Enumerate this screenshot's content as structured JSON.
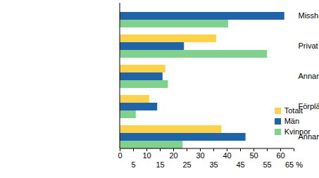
{
  "chart_data": {
    "type": "bar",
    "orientation": "horizontal",
    "grid": false,
    "legend": "bottom-right",
    "xlabel": "%",
    "categories": [
      "Misshandel totalt",
      "Privat bostad",
      "Annan privat plats",
      "Förplägnadsrörelse eller liknande",
      "Annan allmän plats"
    ],
    "series": [
      {
        "name": "Totalt",
        "color": "#fdd24b",
        "values": [
          null,
          36,
          17,
          11,
          38
        ]
      },
      {
        "name": "Män",
        "color": "#1f63a8",
        "values": [
          61.5,
          24,
          16,
          14,
          47
        ]
      },
      {
        "name": "Kvinnor",
        "color": "#80d08e",
        "values": [
          40.5,
          55,
          18,
          6,
          23.5
        ]
      }
    ],
    "xlim": [
      0,
      65
    ],
    "xticks": [
      0,
      5,
      10,
      15,
      20,
      25,
      30,
      35,
      40,
      45,
      50,
      55,
      60,
      65
    ]
  }
}
